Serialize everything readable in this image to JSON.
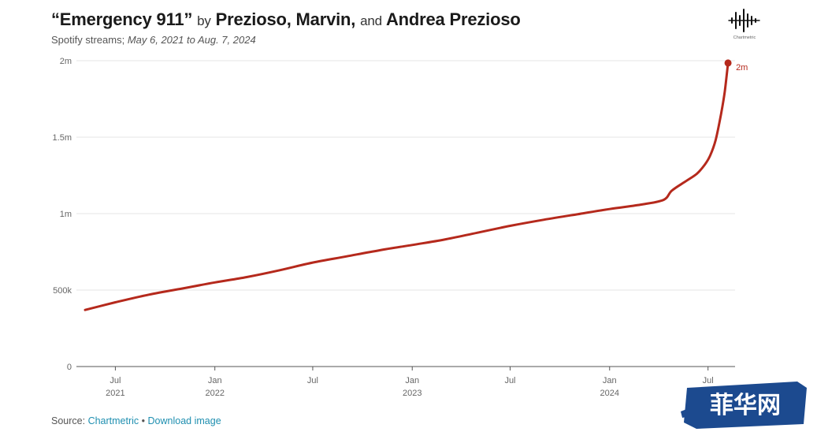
{
  "header": {
    "title_song": "“Emergency 911”",
    "title_by": "by",
    "title_artist1": "Prezioso, Marvin,",
    "title_and": "and",
    "title_artist2": "Andrea Prezioso",
    "subtitle_prefix": "Spotify streams;",
    "subtitle_range": "May 6, 2021 to Aug. 7, 2024"
  },
  "logo": {
    "icon": "chartmetric-logo-icon",
    "text": "Chartmetric"
  },
  "chart_data": {
    "type": "line",
    "xlabel": "",
    "ylabel": "",
    "ylim": [
      0,
      2000000
    ],
    "yticks": [
      0,
      500000,
      1000000,
      1500000,
      2000000
    ],
    "ytick_labels": [
      "0",
      "500k",
      "1m",
      "1.5m",
      "2m"
    ],
    "xticks": [
      {
        "date": "2021-07-01",
        "label": "Jul",
        "year": "2021"
      },
      {
        "date": "2022-01-01",
        "label": "Jan",
        "year": "2022"
      },
      {
        "date": "2022-07-01",
        "label": "Jul",
        "year": ""
      },
      {
        "date": "2023-01-01",
        "label": "Jan",
        "year": "2023"
      },
      {
        "date": "2023-07-01",
        "label": "Jul",
        "year": ""
      },
      {
        "date": "2024-01-01",
        "label": "Jan",
        "year": "2024"
      },
      {
        "date": "2024-07-01",
        "label": "Jul",
        "year": ""
      }
    ],
    "grid": "horizontal",
    "color": "#b5291c",
    "end_label": "2m",
    "series": [
      {
        "x": [
          "2021-05-06",
          "2021-07-01",
          "2021-09-01",
          "2021-11-01",
          "2022-01-01",
          "2022-03-01",
          "2022-05-01",
          "2022-07-01",
          "2022-09-01",
          "2022-11-01",
          "2023-01-01",
          "2023-03-01",
          "2023-05-01",
          "2023-07-01",
          "2023-09-01",
          "2023-11-01",
          "2024-01-01",
          "2024-03-01",
          "2024-04-10",
          "2024-04-25",
          "2024-05-20",
          "2024-06-10",
          "2024-06-25",
          "2024-07-05",
          "2024-07-15",
          "2024-07-25",
          "2024-08-01",
          "2024-08-07"
        ],
        "y": [
          370000,
          420000,
          470000,
          510000,
          550000,
          585000,
          630000,
          680000,
          720000,
          760000,
          795000,
          830000,
          875000,
          920000,
          960000,
          995000,
          1030000,
          1060000,
          1090000,
          1150000,
          1210000,
          1260000,
          1320000,
          1380000,
          1480000,
          1650000,
          1800000,
          1985000
        ]
      }
    ]
  },
  "footer": {
    "source_prefix": "Source:",
    "source_link": "Chartmetric",
    "separator": "•",
    "download_link": "Download image"
  },
  "watermark": {
    "text": "菲华网",
    "color": "#1c4a8f"
  }
}
